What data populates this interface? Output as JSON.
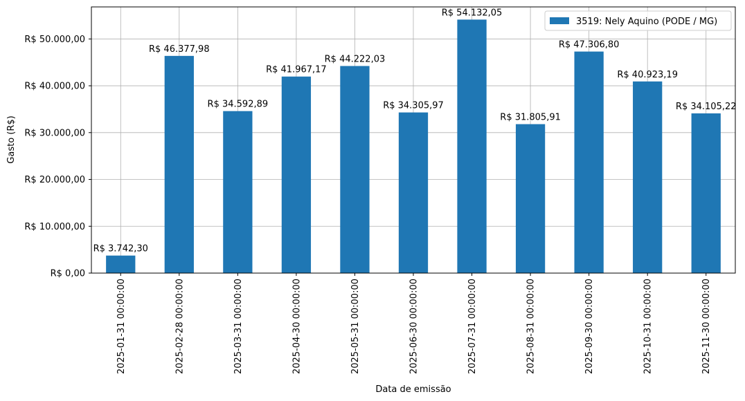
{
  "chart_data": {
    "type": "bar",
    "x_label": "Data de emissão",
    "y_label": "Gasto (R$)",
    "categories": [
      "2025-01-31 00:00:00",
      "2025-02-28 00:00:00",
      "2025-03-31 00:00:00",
      "2025-04-30 00:00:00",
      "2025-05-31 00:00:00",
      "2025-06-30 00:00:00",
      "2025-07-31 00:00:00",
      "2025-08-31 00:00:00",
      "2025-09-30 00:00:00",
      "2025-10-31 00:00:00",
      "2025-11-30 00:00:00"
    ],
    "series": [
      {
        "name": "3519: Nely Aquino (PODE / MG)",
        "color": "#1f77b4",
        "values": [
          3742.3,
          46377.98,
          34592.89,
          41967.17,
          44222.03,
          34305.97,
          54132.05,
          31805.91,
          47306.8,
          40923.19,
          34105.22
        ],
        "value_labels": [
          "R$ 3.742,30",
          "R$ 46.377,98",
          "R$ 34.592,89",
          "R$ 41.967,17",
          "R$ 44.222,03",
          "R$ 34.305,97",
          "R$ 54.132,05",
          "R$ 31.805,91",
          "R$ 47.306,80",
          "R$ 40.923,19",
          "R$ 34.105,22"
        ]
      }
    ],
    "ylim": [
      0,
      56838.65
    ],
    "yticks": [
      {
        "value": 0,
        "label": "R$ 0,00"
      },
      {
        "value": 10000,
        "label": "R$ 10.000,00"
      },
      {
        "value": 20000,
        "label": "R$ 20.000,00"
      },
      {
        "value": 30000,
        "label": "R$ 30.000,00"
      },
      {
        "value": 40000,
        "label": "R$ 40.000,00"
      },
      {
        "value": 50000,
        "label": "R$ 50.000,00"
      }
    ],
    "grid": true,
    "legend": "upper right"
  }
}
